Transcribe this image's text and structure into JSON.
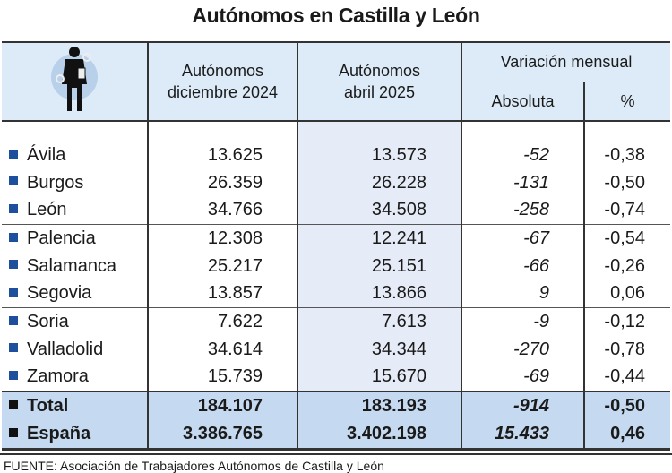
{
  "title": "Autónomos en Castilla y León",
  "headers": {
    "col1": "Autónomos diciembre 2024",
    "col2": "Autónomos abril 2025",
    "group": "Variación mensual",
    "abs": "Absoluta",
    "pct": "%"
  },
  "rows": [
    {
      "name": "Ávila",
      "dic": "13.625",
      "abr": "13.573",
      "abs": "-52",
      "pct": "-0,38"
    },
    {
      "name": "Burgos",
      "dic": "26.359",
      "abr": "26.228",
      "abs": "-131",
      "pct": "-0,50"
    },
    {
      "name": "León",
      "dic": "34.766",
      "abr": "34.508",
      "abs": "-258",
      "pct": "-0,74"
    },
    {
      "name": "Palencia",
      "dic": "12.308",
      "abr": "12.241",
      "abs": "-67",
      "pct": "-0,54"
    },
    {
      "name": "Salamanca",
      "dic": "25.217",
      "abr": "25.151",
      "abs": "-66",
      "pct": "-0,26"
    },
    {
      "name": "Segovia",
      "dic": "13.857",
      "abr": "13.866",
      "abs": "9",
      "pct": "0,06"
    },
    {
      "name": "Soria",
      "dic": "7.622",
      "abr": "7.613",
      "abs": "-9",
      "pct": "-0,12"
    },
    {
      "name": "Valladolid",
      "dic": "34.614",
      "abr": "34.344",
      "abs": "-270",
      "pct": "-0,78"
    },
    {
      "name": "Zamora",
      "dic": "15.739",
      "abr": "15.670",
      "abs": "-69",
      "pct": "-0,44"
    }
  ],
  "totals": [
    {
      "name": "Total",
      "dic": "184.107",
      "abr": "183.193",
      "abs": "-914",
      "pct": "-0,50"
    },
    {
      "name": "España",
      "dic": "3.386.765",
      "abr": "3.402.198",
      "abs": "15.433",
      "pct": "0,46"
    }
  ],
  "footer": "FUENTE: Asociación de Trabajadores Autónomos de Castilla y León",
  "colors": {
    "header_bg": "#dcebf7",
    "total_bg": "#c5daf0",
    "bullet": "#1e4f9c"
  },
  "icon": "worker-silhouette-icon"
}
